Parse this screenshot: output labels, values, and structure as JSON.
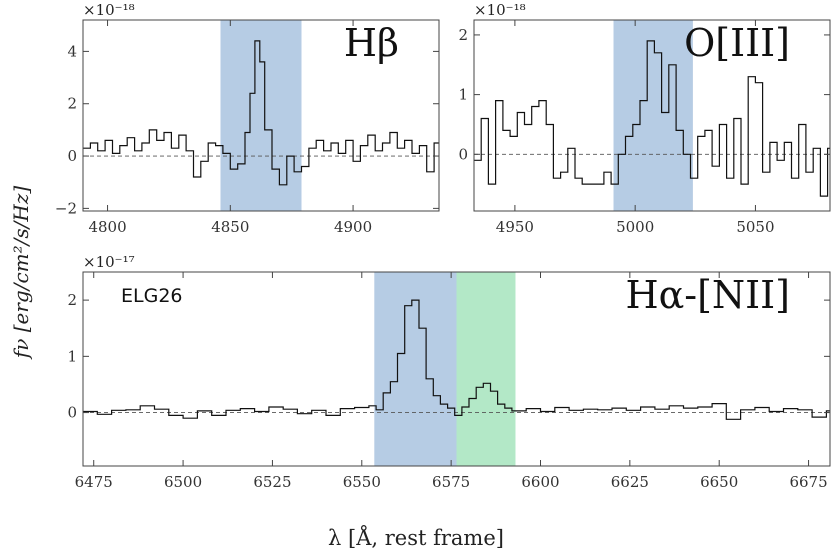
{
  "chart_data": [
    {
      "type": "line",
      "drawstyle": "steps",
      "title": "Hβ",
      "multiplier": "×10⁻¹⁸",
      "xlim": [
        4790,
        4935
      ],
      "ylim": [
        -2.1,
        5.2
      ],
      "xticks": [
        4800,
        4850,
        4900
      ],
      "yticks": [
        -2,
        0,
        2,
        4
      ],
      "bands": [
        {
          "from": 4846,
          "to": 4879,
          "color": "#b6cce4"
        }
      ],
      "zero_line": true,
      "x": [
        4790,
        4793,
        4796,
        4799,
        4802,
        4805,
        4808,
        4811,
        4814,
        4817,
        4820,
        4823,
        4826,
        4829,
        4832,
        4835,
        4838,
        4841,
        4844,
        4847,
        4850,
        4853,
        4856,
        4858,
        4860,
        4862,
        4864,
        4867,
        4870,
        4873,
        4876,
        4879,
        4882,
        4885,
        4888,
        4891,
        4894,
        4897,
        4900,
        4903,
        4906,
        4909,
        4912,
        4915,
        4918,
        4921,
        4924,
        4927,
        4930,
        4933
      ],
      "values": [
        0.3,
        0.5,
        0.2,
        0.6,
        0.1,
        0.4,
        0.7,
        0.2,
        0.5,
        1.0,
        0.6,
        0.9,
        0.3,
        0.8,
        0.2,
        -0.8,
        -0.2,
        0.5,
        0.4,
        0.1,
        -0.5,
        -0.3,
        0.9,
        2.4,
        4.4,
        3.6,
        1.0,
        -0.5,
        -1.1,
        0.0,
        -0.6,
        -0.4,
        0.3,
        0.6,
        0.2,
        0.5,
        0.1,
        0.6,
        -0.2,
        0.4,
        0.8,
        0.2,
        0.5,
        0.9,
        0.3,
        0.6,
        0.1,
        0.4,
        -0.6,
        0.5
      ]
    },
    {
      "type": "line",
      "drawstyle": "steps",
      "title": "O[III]",
      "multiplier": "×10⁻¹⁸",
      "xlim": [
        4933,
        5081
      ],
      "ylim": [
        -0.95,
        2.25
      ],
      "xticks": [
        4950,
        5000,
        5050
      ],
      "yticks": [
        0,
        1,
        2
      ],
      "bands": [
        {
          "from": 4991,
          "to": 5024,
          "color": "#b6cce4"
        }
      ],
      "zero_line": true,
      "x": [
        4933,
        4936,
        4939,
        4942,
        4945,
        4948,
        4951,
        4954,
        4957,
        4960,
        4963,
        4966,
        4969,
        4972,
        4975,
        4978,
        4981,
        4984,
        4987,
        4990,
        4993,
        4996,
        4999,
        5002,
        5005,
        5008,
        5011,
        5014,
        5017,
        5020,
        5023,
        5026,
        5029,
        5032,
        5035,
        5038,
        5041,
        5044,
        5047,
        5050,
        5053,
        5056,
        5059,
        5062,
        5065,
        5068,
        5071,
        5074,
        5077,
        5080
      ],
      "values": [
        -0.1,
        0.6,
        -0.5,
        0.9,
        0.4,
        0.3,
        0.7,
        0.5,
        0.8,
        0.9,
        0.5,
        -0.4,
        -0.3,
        0.1,
        -0.4,
        -0.5,
        -0.5,
        -0.5,
        -0.3,
        -0.5,
        0.0,
        0.3,
        0.5,
        0.9,
        1.9,
        1.7,
        0.7,
        1.5,
        0.4,
        0.0,
        -0.4,
        0.3,
        0.4,
        -0.2,
        0.5,
        -0.4,
        0.6,
        -0.5,
        1.3,
        1.2,
        -0.3,
        0.2,
        -0.1,
        0.2,
        -0.4,
        0.5,
        -0.3,
        0.1,
        -0.7,
        0.1
      ]
    },
    {
      "type": "line",
      "drawstyle": "steps",
      "title": "Hα-[NII]",
      "annotation": "ELG26",
      "multiplier": "×10⁻¹⁷",
      "xlim": [
        6472,
        6681
      ],
      "ylim": [
        -0.95,
        2.5
      ],
      "xticks": [
        6475,
        6500,
        6525,
        6550,
        6575,
        6600,
        6625,
        6650,
        6675
      ],
      "yticks": [
        0,
        1,
        2
      ],
      "bands": [
        {
          "from": 6553.5,
          "to": 6576.5,
          "color": "#b6cce4"
        },
        {
          "from": 6576.5,
          "to": 6593,
          "color": "#b3e8c7"
        }
      ],
      "zero_line": true,
      "x": [
        6472,
        6476,
        6480,
        6484,
        6488,
        6492,
        6496,
        6500,
        6504,
        6508,
        6512,
        6516,
        6520,
        6524,
        6528,
        6532,
        6536,
        6540,
        6544,
        6548,
        6552,
        6554,
        6556,
        6558,
        6560,
        6562,
        6564,
        6566,
        6568,
        6570,
        6572,
        6574,
        6576,
        6578,
        6580,
        6582,
        6584,
        6586,
        6588,
        6590,
        6592,
        6596,
        6600,
        6604,
        6608,
        6612,
        6616,
        6620,
        6624,
        6628,
        6632,
        6636,
        6640,
        6644,
        6648,
        6652,
        6656,
        6660,
        6664,
        6668,
        6672,
        6676,
        6680
      ],
      "values": [
        0.02,
        -0.03,
        0.04,
        0.05,
        0.12,
        0.06,
        -0.05,
        -0.1,
        0.03,
        -0.05,
        0.04,
        0.07,
        0.02,
        0.1,
        0.06,
        -0.02,
        0.04,
        -0.05,
        0.07,
        0.09,
        0.12,
        0.05,
        0.35,
        0.55,
        1.05,
        1.9,
        2.0,
        1.5,
        0.6,
        0.3,
        0.15,
        0.08,
        -0.05,
        0.1,
        0.25,
        0.45,
        0.52,
        0.38,
        0.15,
        0.08,
        0.03,
        0.07,
        0.02,
        0.09,
        0.04,
        0.06,
        0.05,
        0.08,
        0.04,
        0.1,
        0.06,
        0.12,
        0.08,
        0.1,
        0.16,
        -0.12,
        0.05,
        0.09,
        0.02,
        0.07,
        0.05,
        -0.08,
        0.03
      ]
    }
  ],
  "ylabel": "fν [erg/cm²/s/Hz]",
  "xlabel": "λ [Å, rest frame]"
}
